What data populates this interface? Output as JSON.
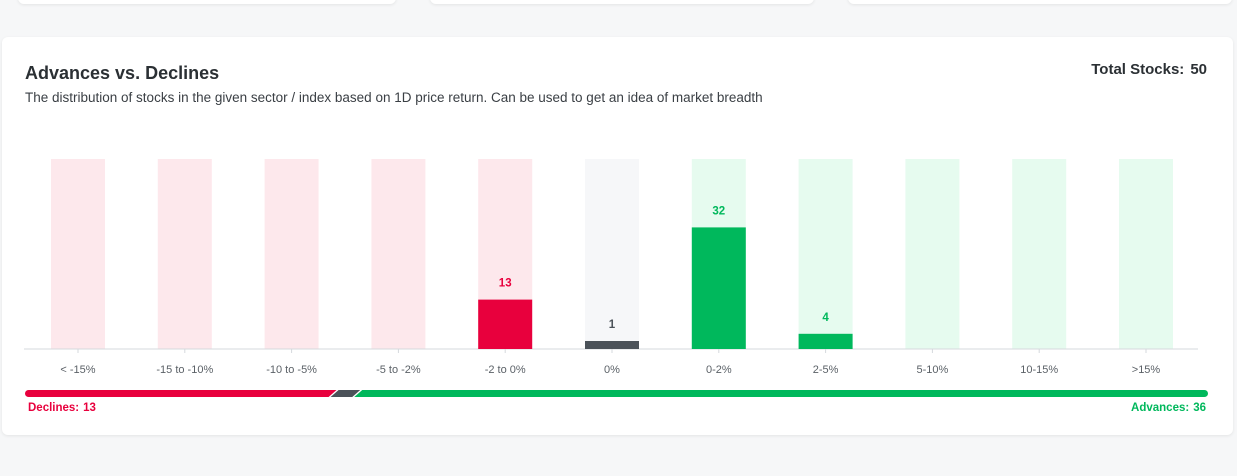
{
  "card": {
    "title": "Advances vs. Declines",
    "subtitle": "The distribution of stocks in the given sector / index based on 1D price return. Can be used to get an idea of market breadth",
    "total_label": "Total Stocks:",
    "total_value": "50"
  },
  "breadth": {
    "declines_label": "Declines:",
    "declines_value": "13",
    "advances_label": "Advances:",
    "advances_value": "36",
    "declines": 13,
    "neutral": 1,
    "advances": 36
  },
  "colors": {
    "decline": "#e8003d",
    "decline_bg": "#fde8ec",
    "neutral": "#4b5259",
    "neutral_bg": "#f6f7f9",
    "advance": "#00b85c",
    "advance_bg": "#e6fbef"
  },
  "chart_data": {
    "type": "bar",
    "title": "Advances vs. Declines",
    "categories": [
      "< -15%",
      "-15 to -10%",
      "-10 to -5%",
      "-5 to -2%",
      "-2 to 0%",
      "0%",
      "0-2%",
      "2-5%",
      "5-10%",
      "10-15%",
      ">15%"
    ],
    "values": [
      0,
      0,
      0,
      0,
      13,
      1,
      32,
      4,
      0,
      0,
      0
    ],
    "groups": [
      "decline",
      "decline",
      "decline",
      "decline",
      "decline",
      "neutral",
      "advance",
      "advance",
      "advance",
      "advance",
      "advance"
    ],
    "ylim": [
      0,
      50
    ],
    "grid": false,
    "legend": "none"
  }
}
